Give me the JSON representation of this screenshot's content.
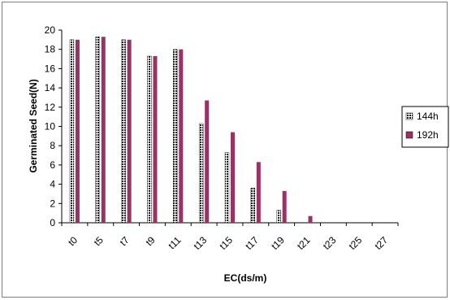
{
  "chart_data": {
    "type": "bar",
    "title": "",
    "xlabel": "EC(ds/m)",
    "ylabel": "Germinated Seed(N)",
    "ylim": [
      0,
      20
    ],
    "yticks": [
      "0",
      "2",
      "4",
      "6",
      "8",
      "10",
      "12",
      "14",
      "16",
      "18",
      "20"
    ],
    "grid": false,
    "legend_position": "right",
    "categories": [
      "t0",
      "t5",
      "t7",
      "t9",
      "t11",
      "t13",
      "t15",
      "t17",
      "t19",
      "t21",
      "t23",
      "t25",
      "t27"
    ],
    "series": [
      {
        "name": "144h",
        "color": "#1a1a1a",
        "pattern": "dotted",
        "values": [
          19.0,
          19.3,
          19.0,
          17.3,
          18.0,
          10.3,
          7.3,
          3.6,
          1.3,
          0,
          0,
          0,
          0
        ]
      },
      {
        "name": "192h",
        "color": "#993366",
        "pattern": "solid",
        "values": [
          19.0,
          19.3,
          19.0,
          17.3,
          18.0,
          12.7,
          9.4,
          6.3,
          3.3,
          0.7,
          0,
          0,
          0
        ]
      }
    ]
  }
}
